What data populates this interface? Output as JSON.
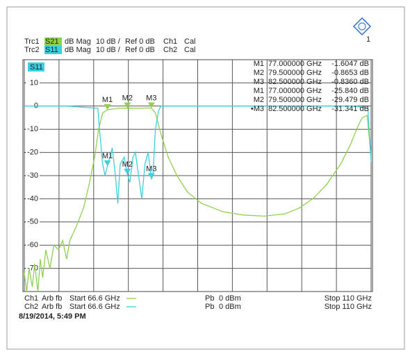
{
  "window_number": "1",
  "header": {
    "rows": [
      [
        "Trc1",
        "S21",
        "dB Mag",
        "10 dB /",
        "Ref 0 dB",
        "Ch1",
        "Cal"
      ],
      [
        "Trc2",
        "S11",
        "dB Mag",
        "10 dB /",
        "Ref 0 dB",
        "Ch2",
        "Cal"
      ]
    ]
  },
  "footer": {
    "rows": [
      [
        "Ch1",
        "Arb fb",
        "Start 66.6 GHz",
        "Pb",
        "0 dBm",
        "Stop 110 GHz"
      ],
      [
        "Ch2",
        "Arb fb",
        "Start 66.6 GHz",
        "Pb",
        "0 dBm",
        "Stop 110 GHz"
      ]
    ],
    "timestamp": "8/19/2014, 5:49 PM"
  },
  "chart_data": {
    "type": "line",
    "trace_label": "S11",
    "xlim": [
      66.6,
      110
    ],
    "xticks": [
      66.6,
      70.94,
      75.28,
      79.62,
      83.96,
      88.3,
      92.64,
      96.98,
      101.32,
      105.66,
      110
    ],
    "ylim": [
      -80,
      20
    ],
    "yticks": [
      10,
      0,
      -10,
      -20,
      -30,
      -40,
      -50,
      -60,
      -70
    ],
    "grid": true,
    "series": [
      {
        "name": "S21",
        "color": "#8fd14f",
        "x": [
          66.6,
          66.9,
          67.2,
          67.6,
          67.9,
          68.3,
          68.6,
          68.9,
          69.3,
          69.8,
          70.3,
          70.9,
          71.4,
          71.9,
          72.3,
          73.1,
          74.0,
          74.7,
          75.4,
          75.9,
          76.4,
          77.0,
          78.3,
          79.5,
          81.0,
          82.5,
          83.0,
          83.7,
          84.6,
          85.7,
          87.0,
          88.8,
          91.4,
          94.0,
          96.6,
          99.2,
          101.0,
          102.7,
          104.4,
          106.2,
          107.5,
          108.3,
          108.9,
          109.5,
          110.0
        ],
        "values": [
          -72,
          -80,
          -70,
          -78,
          -68,
          -80,
          -66,
          -74,
          -62,
          -70,
          -60,
          -62,
          -58,
          -66,
          -58,
          -52,
          -44,
          -34,
          -22,
          -10,
          -3,
          -1.6,
          -1,
          -0.9,
          -1,
          -0.8,
          -3,
          -12,
          -22,
          -30,
          -37,
          -42,
          -45.5,
          -47,
          -47.5,
          -46.5,
          -44,
          -40,
          -34,
          -25,
          -16,
          -9,
          -5,
          -4,
          -22
        ],
        "markers": {
          "names": [
            "M1",
            "M2",
            "M3"
          ],
          "table_names": [
            "M1",
            "M2",
            "M3"
          ],
          "x": [
            77,
            79.5,
            82.5
          ],
          "x_labels": [
            "77.000000 GHz",
            "79.500000 GHz",
            "82.500000 GHz"
          ],
          "values": [
            -1.6047,
            -0.8653,
            -0.836
          ],
          "value_labels": [
            "-1.6047 dB",
            "-0.8653 dB",
            "-0.8360 dB"
          ]
        }
      },
      {
        "name": "S11",
        "color": "#3ccfe0",
        "x": [
          66.6,
          72.0,
          75.8,
          76.0,
          76.4,
          76.7,
          77.0,
          77.6,
          78.0,
          78.3,
          78.6,
          79.1,
          79.5,
          79.8,
          80.2,
          80.5,
          80.9,
          81.3,
          81.7,
          82.1,
          82.5,
          82.7,
          83.0,
          83.4,
          83.7,
          95.0,
          108.0,
          109.6,
          110.0
        ],
        "values": [
          0,
          0,
          -1,
          -10,
          -25,
          -30,
          -25.84,
          -18,
          -30,
          -42,
          -25,
          -22,
          -29.479,
          -33,
          -22,
          -20,
          -30,
          -40,
          -25,
          -20,
          -31.341,
          -30,
          -10,
          -2,
          0,
          0,
          0,
          -1,
          -24
        ],
        "markers": {
          "names": [
            "M1",
            "M2",
            "M3"
          ],
          "table_names": [
            "M1",
            "M2",
            "•M3"
          ],
          "x": [
            77,
            79.5,
            82.5
          ],
          "x_labels": [
            "77.000000 GHz",
            "79.500000 GHz",
            "82.500000 GHz"
          ],
          "values": [
            -25.84,
            -29.479,
            -31.341
          ],
          "value_labels": [
            "-25.840 dB",
            "-29.479 dB",
            "-31.341 dB"
          ]
        }
      }
    ]
  }
}
